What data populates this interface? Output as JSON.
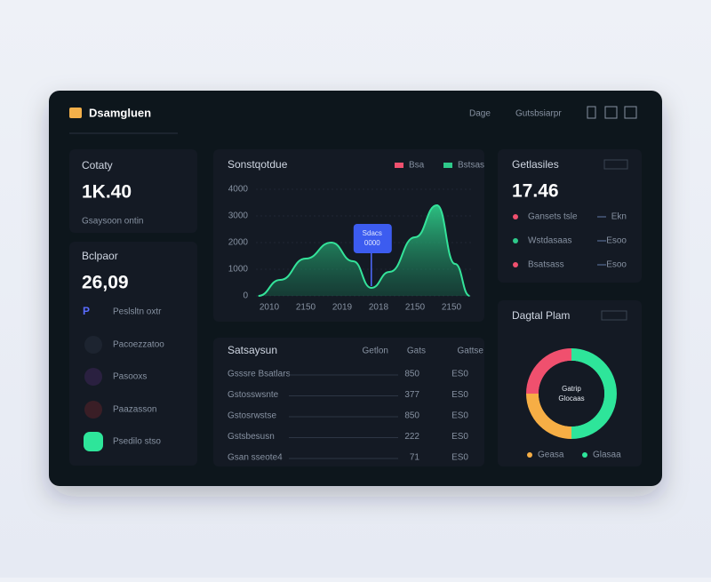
{
  "header": {
    "title": "Dsamgluen",
    "links": [
      "Dage",
      "Gutsbsiarpr"
    ]
  },
  "stat1": {
    "title": "Cotaty",
    "value": "1K.40",
    "caption": "Gsaysoon ontin"
  },
  "stat2": {
    "title": "Bclpaor",
    "value": "26,09",
    "items": [
      "Peslsltn oxtr",
      "Pacoezzatoo",
      "Pasooxs",
      "Paazasson",
      "Psedilo stso"
    ]
  },
  "stat3": {
    "title": "Getlasiles",
    "value": "17.46",
    "items": [
      {
        "label": "Gansets tsle",
        "value": "Ekn"
      },
      {
        "label": "Wstdasaas",
        "value": "Esoo"
      },
      {
        "label": "Bsatsass",
        "value": "Esoo"
      }
    ]
  },
  "table": {
    "title": "Satsaysun",
    "columns": [
      "Getlon",
      "Gats",
      "Gattse"
    ],
    "rows": [
      [
        "Gsssre Bsatlars",
        "850",
        "ES0"
      ],
      [
        "Gstosswsnte",
        "377",
        "ES0"
      ],
      [
        "Gstosrwstse",
        "850",
        "ES0"
      ],
      [
        "Gstsbesusn",
        "222",
        "ES0"
      ],
      [
        "Gsan sseote4",
        "71",
        "ES0"
      ]
    ]
  },
  "chart_data": [
    {
      "type": "area",
      "title": "Sonstqotdue",
      "color": "#34e39a",
      "legend": [
        {
          "color": "#f0506e",
          "label": "Bsa"
        },
        {
          "color": "#2ec98a",
          "label": "Bstsas"
        }
      ],
      "x": [
        -0.3,
        0.3,
        1,
        1.7,
        2.3,
        2.8,
        3.3,
        4,
        4.6,
        5.1,
        5.5
      ],
      "values": [
        0,
        600,
        1400,
        2000,
        1300,
        300,
        900,
        2200,
        3400,
        1200,
        0
      ],
      "xlim": [
        -0.4,
        5.6
      ],
      "xticks": [
        {
          "value": 0,
          "label": "2010"
        },
        {
          "value": 1,
          "label": "2150"
        },
        {
          "value": 2,
          "label": "2019"
        },
        {
          "value": 3,
          "label": "2018"
        },
        {
          "value": 4,
          "label": "2150"
        },
        {
          "value": 5,
          "label": "2150"
        }
      ],
      "ylim": [
        0,
        4000
      ],
      "yticks": [
        0,
        1000,
        2000,
        3000,
        4000
      ],
      "grid": true,
      "annotation": {
        "x": 2.8,
        "lines": [
          "Sdacs",
          "0000"
        ]
      }
    },
    {
      "type": "pie",
      "title": "Dagtal Plam",
      "center_label": [
        "Gatrip",
        "Glocaas"
      ],
      "categories": [
        "Geasa",
        null,
        "Glasaa"
      ],
      "values": [
        25,
        25,
        50
      ],
      "colors": [
        "#f6ae45",
        "#f0506e",
        "#2ee59a"
      ]
    }
  ]
}
